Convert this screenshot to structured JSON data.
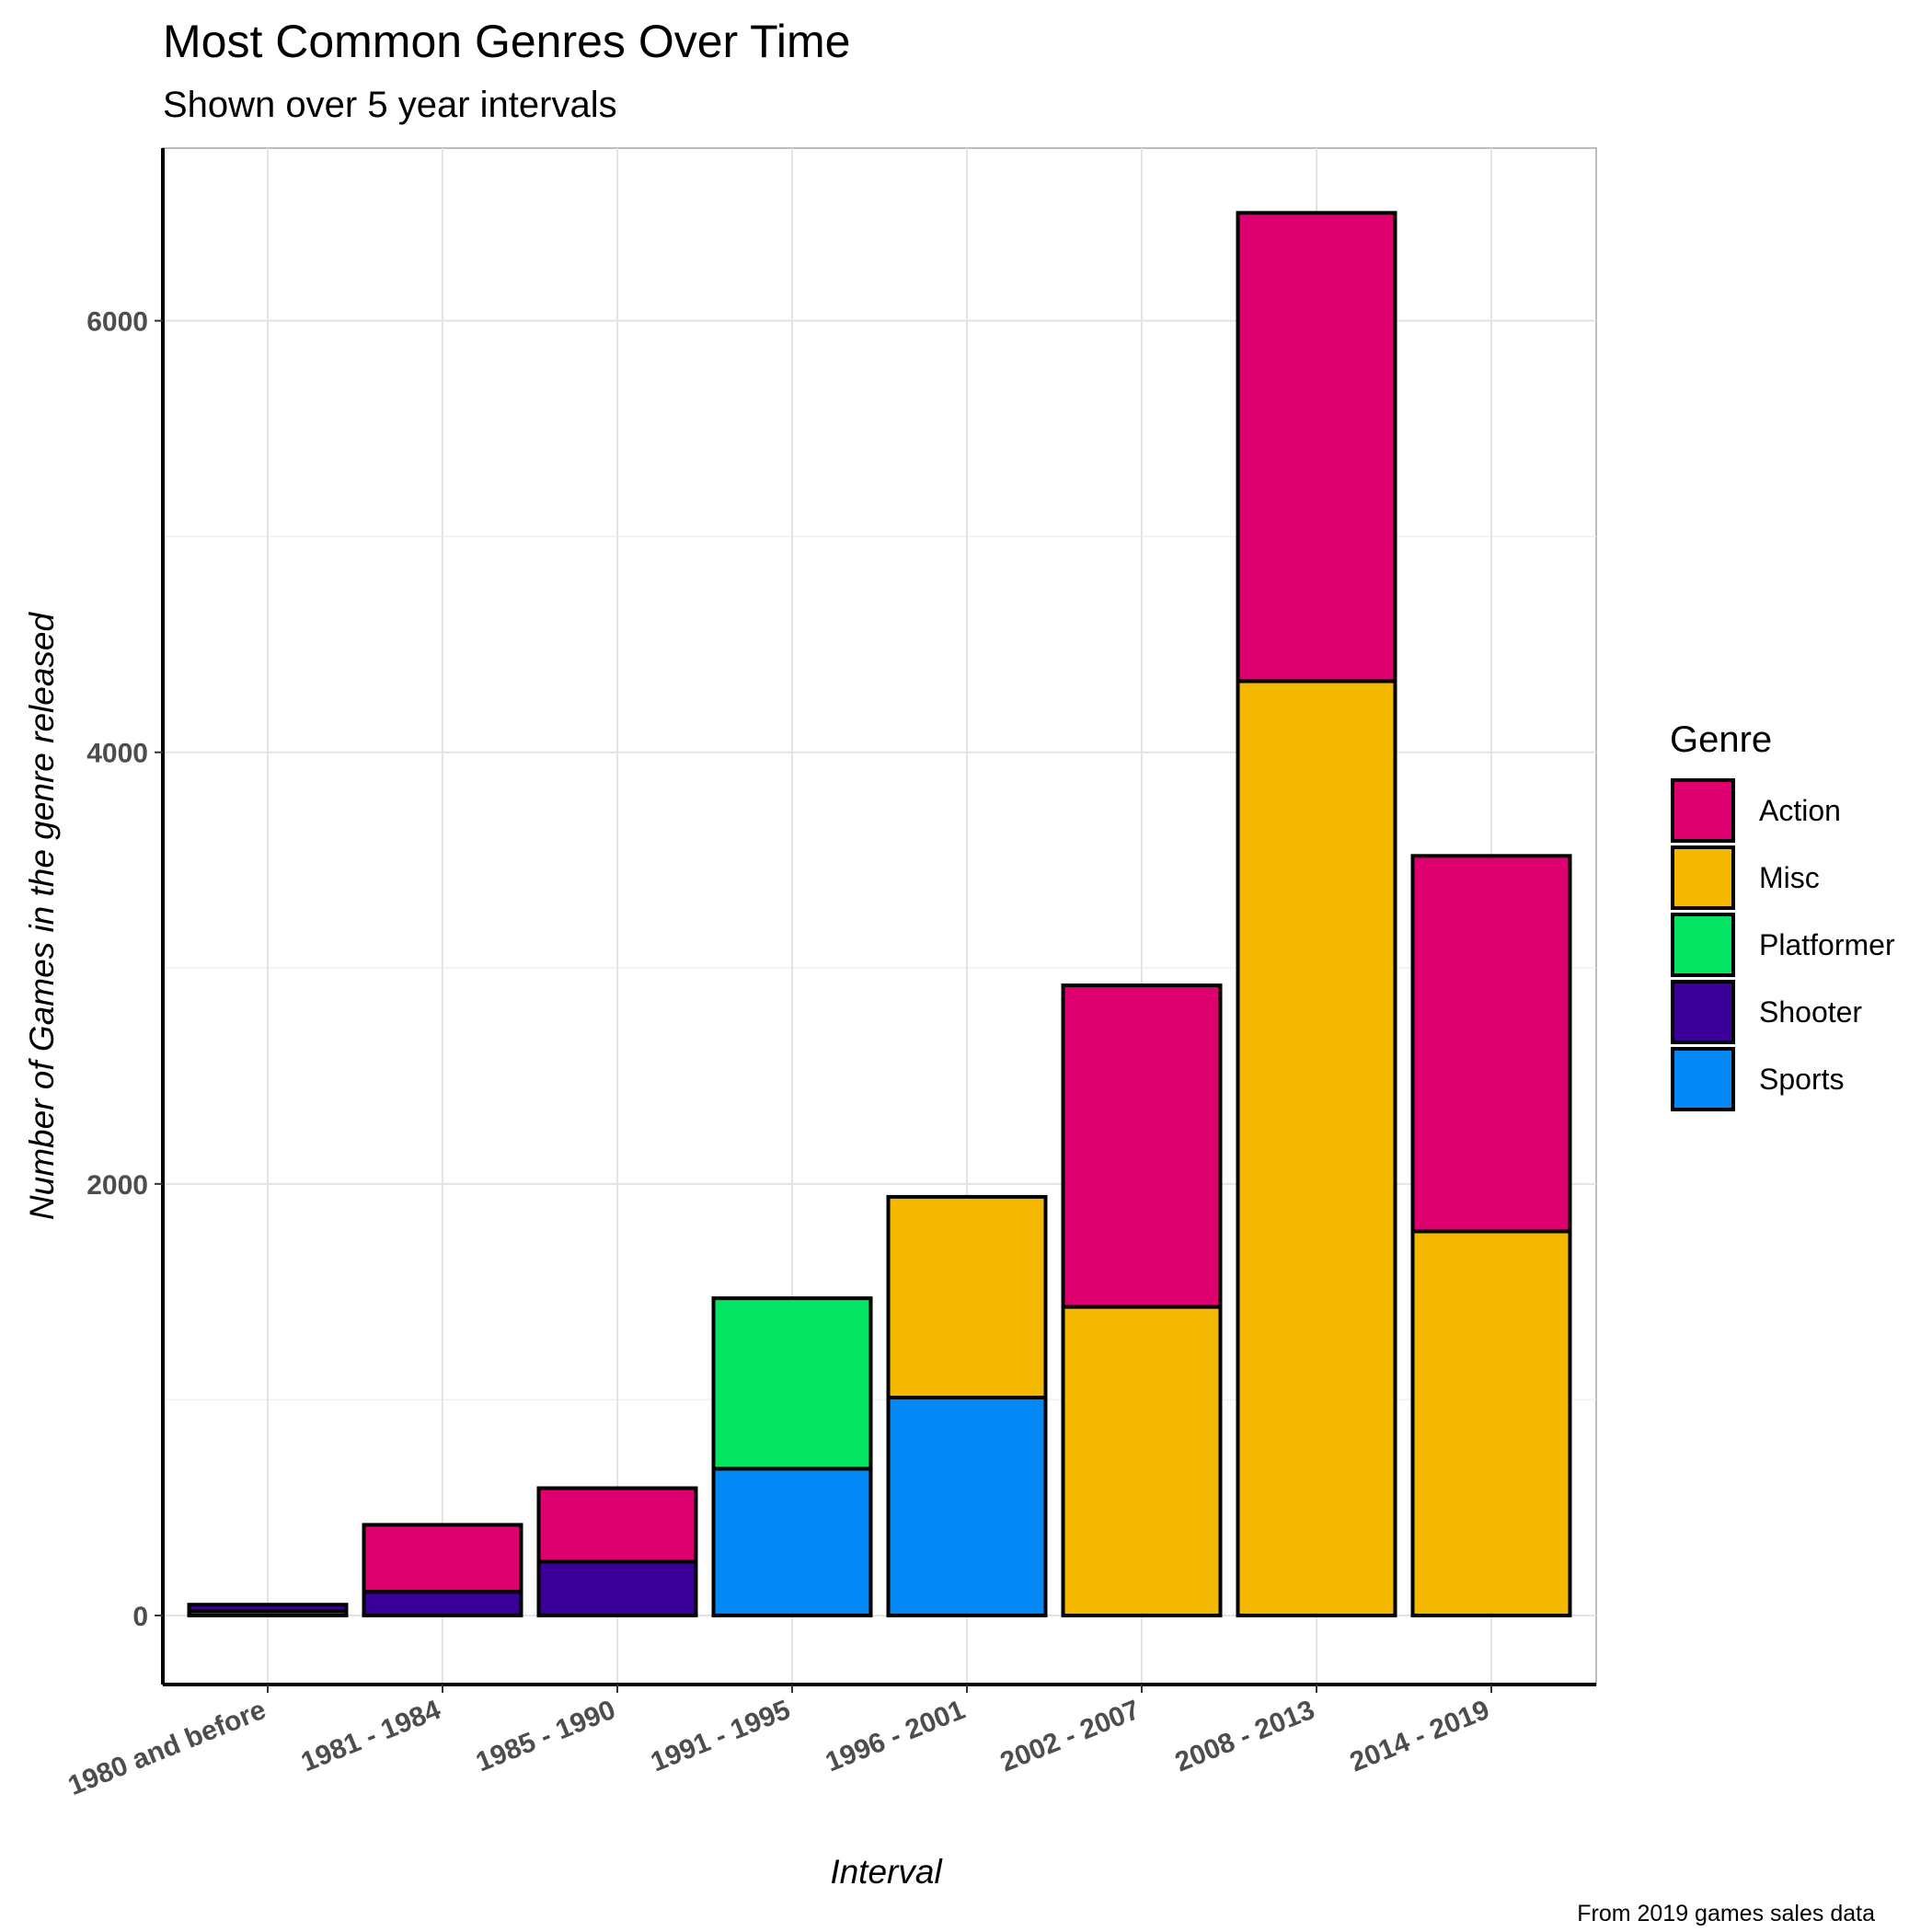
{
  "chart_data": {
    "type": "bar",
    "stacked": true,
    "title": "Most Common Genres Over Time",
    "subtitle": "Shown over 5 year intervals",
    "xlabel": "Interval",
    "ylabel": "Number of Games in the genre released",
    "caption": "From 2019 games sales data",
    "legend_title": "Genre",
    "legend_position": "right",
    "grid": true,
    "ylim": [
      -320,
      6800
    ],
    "yticks": [
      0,
      2000,
      4000,
      6000
    ],
    "ytick_labels": [
      "0",
      "2000",
      "4000",
      "6000"
    ],
    "categories": [
      "1980 and before",
      "1981 - 1984",
      "1985 - 1990",
      "1991 - 1995",
      "1996 - 2001",
      "2002 - 2007",
      "2008 - 2013",
      "2014 - 2019"
    ],
    "series": [
      {
        "name": "Sports",
        "color": "#0388F5",
        "values": [
          20,
          0,
          0,
          680,
          1010,
          0,
          0,
          0
        ]
      },
      {
        "name": "Shooter",
        "color": "#3A0099",
        "values": [
          30,
          110,
          250,
          0,
          0,
          0,
          0,
          0
        ]
      },
      {
        "name": "Platformer",
        "color": "#05E462",
        "values": [
          0,
          0,
          0,
          790,
          0,
          0,
          0,
          0
        ]
      },
      {
        "name": "Misc",
        "color": "#F4B800",
        "values": [
          0,
          0,
          0,
          0,
          930,
          1430,
          4330,
          1780
        ]
      },
      {
        "name": "Action",
        "color": "#DF0070",
        "values": [
          0,
          310,
          340,
          0,
          0,
          1490,
          2170,
          1740
        ]
      }
    ],
    "legend_order": [
      "Action",
      "Misc",
      "Platformer",
      "Shooter",
      "Sports"
    ]
  }
}
